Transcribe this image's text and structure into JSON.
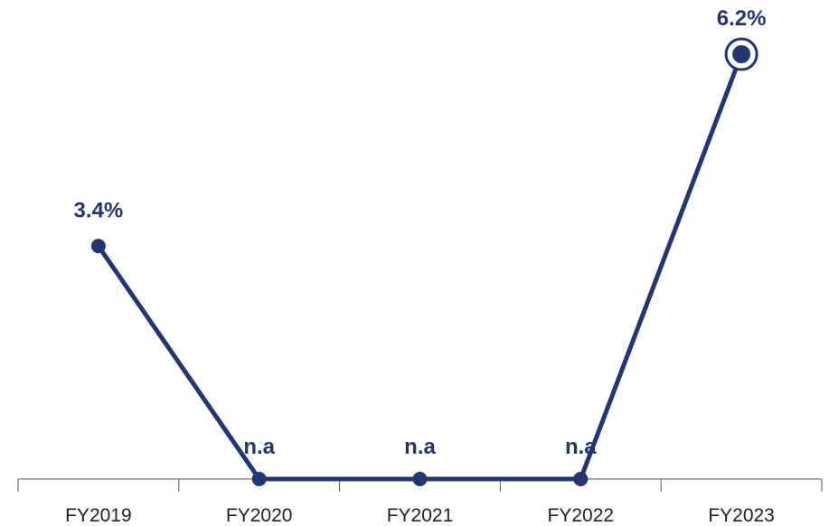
{
  "chart_data": {
    "type": "line",
    "categories": [
      "FY2019",
      "FY2020",
      "FY2021",
      "FY2022",
      "FY2023"
    ],
    "series": [
      {
        "values": [
          3.4,
          0,
          0,
          0,
          6.2
        ],
        "data_labels": [
          "3.4%",
          "n.a",
          "n.a",
          "n.a",
          "6.2%"
        ],
        "color": "#233672"
      }
    ],
    "title": "",
    "xlabel": "",
    "ylabel": "",
    "ylim": [
      0,
      6.6
    ],
    "grid": false,
    "legend": "none",
    "highlighted_point": "FY2023"
  },
  "colors": {
    "series": "#233672",
    "axis": "#555555",
    "tick_text": "#222222"
  }
}
